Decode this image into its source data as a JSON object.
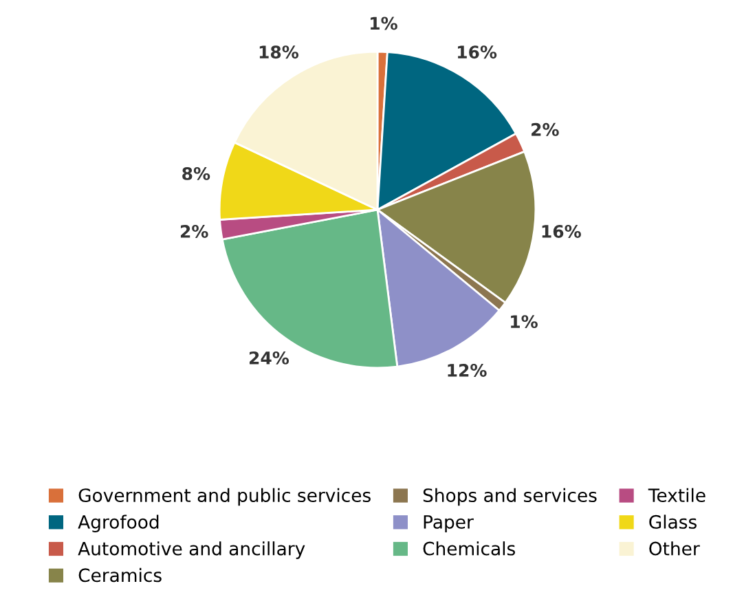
{
  "chart_data": {
    "type": "pie",
    "categories": [
      "Government and public services",
      "Agrofood",
      "Automotive and ancillary",
      "Ceramics",
      "Shops and services",
      "Paper",
      "Chemicals",
      "Textile",
      "Glass",
      "Other"
    ],
    "values": [
      1,
      16,
      2,
      16,
      1,
      12,
      24,
      2,
      8,
      18
    ],
    "colors": [
      "#d9703a",
      "#006680",
      "#c85a4a",
      "#87844a",
      "#8c7650",
      "#8e90c8",
      "#66b887",
      "#b84c82",
      "#f0d818",
      "#faf3d4"
    ],
    "value_labels": [
      "1%",
      "16%",
      "2%",
      "16%",
      "1%",
      "12%",
      "24%",
      "2%",
      "8%",
      "18%"
    ],
    "legend": "bottom"
  }
}
